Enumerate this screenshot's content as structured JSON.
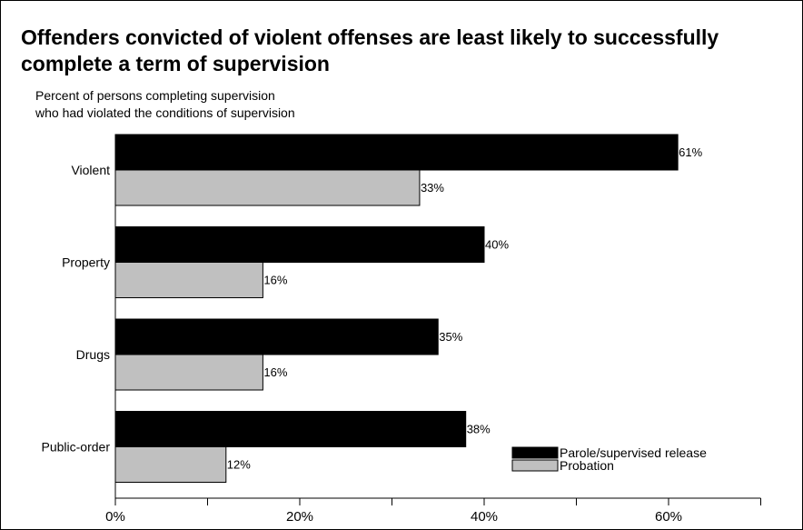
{
  "chart_data": {
    "type": "bar",
    "orientation": "horizontal",
    "title": "Offenders convicted of violent offenses are least likely to successfully complete a term of supervision",
    "subtitle_lines": [
      "Percent of persons completing supervision",
      "who had violated the conditions of supervision"
    ],
    "categories": [
      "Violent",
      "Property",
      "Drugs",
      "Public-order"
    ],
    "series": [
      {
        "name": "Parole/supervised release",
        "values": [
          61,
          40,
          35,
          38
        ],
        "labels": [
          "61%",
          "40%",
          "35%",
          "38%"
        ],
        "color": "#000000"
      },
      {
        "name": "Probation",
        "values": [
          33,
          16,
          16,
          12
        ],
        "labels": [
          "33%",
          "16%",
          "16%",
          "12%"
        ],
        "color": "#c0c0c0"
      }
    ],
    "xlim": [
      0,
      70
    ],
    "x_ticks": [
      0,
      20,
      40,
      60
    ],
    "x_tick_labels": [
      "0%",
      "20%",
      "40%",
      "60%"
    ],
    "grid": false,
    "legend_position": "bottom-right"
  }
}
